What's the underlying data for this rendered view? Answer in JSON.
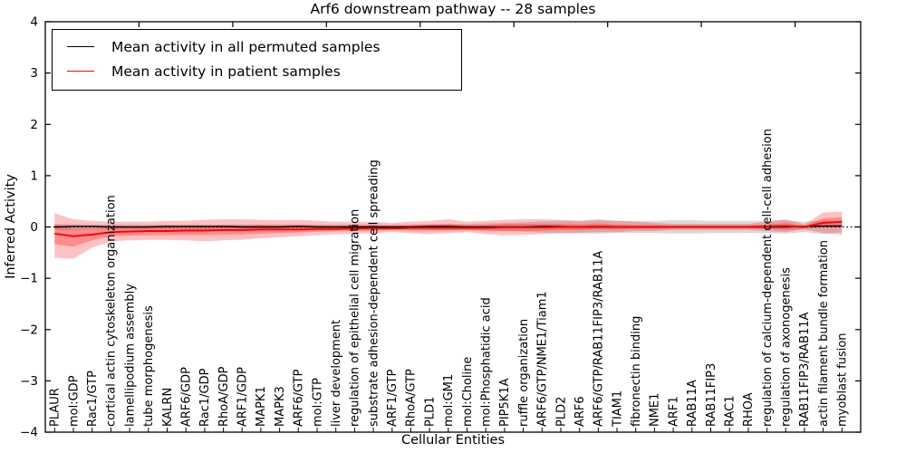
{
  "colors": {
    "patient_line": "#ff0000",
    "permuted_line": "#000000",
    "patient_band": "rgba(255,0,0,0.26)",
    "permuted_band": "rgba(0,0,0,0.15)",
    "axis": "#000000"
  },
  "chart_data": {
    "type": "line",
    "title": "Arf6 downstream pathway -- 28 samples",
    "xlabel": "Cellular Entities",
    "ylabel": "Inferred Activity",
    "ylim": [
      -4,
      4
    ],
    "xlim": [
      0,
      43.5
    ],
    "grid": false,
    "legend_position": "upper left",
    "zero_line": true,
    "y_ticks": [
      4,
      3,
      2,
      1,
      0,
      -1,
      -2,
      -3,
      -4
    ],
    "y_tick_labels": [
      "4",
      "3",
      "2",
      "1",
      "0",
      "−1",
      "−2",
      "−3",
      "−4"
    ],
    "x_major_ticks": [
      5,
      10,
      15,
      20,
      25,
      30,
      35,
      40
    ],
    "categories": [
      "PLAUR",
      "mol:GDP",
      "Rac1/GTP",
      "cortical actin cytoskeleton organization",
      "lamellipodium assembly",
      "tube morphogenesis",
      "KALRN",
      "ARF6/GDP",
      "Rac1/GDP",
      "RhoA/GDP",
      "ARF1/GDP",
      "MAPK1",
      "MAPK3",
      "ARF6/GTP",
      "mol:GTP",
      "liver development",
      "regulation of epithelial cell migration",
      "substrate adhesion-dependent cell spreading",
      "ARF1/GTP",
      "RhoA/GTP",
      "PLD1",
      "mol:GM1",
      "mol:Choline",
      "mol:Phosphatidic acid",
      "PIP5K1A",
      "ruffle organization",
      "ARF6/GTP/NME1/Tiam1",
      "PLD2",
      "ARF6",
      "ARF6/GTP/RAB11FIP3/RAB11A",
      "TIAM1",
      "fibronectin binding",
      "NME1",
      "ARF1",
      "RAB11A",
      "RAB11FIP3",
      "RAC1",
      "RHOA",
      "regulation of calcium-dependent cell-cell adhesion",
      "regulation of axonogenesis",
      "RAB11FIP3/RAB11A",
      "actin filament bundle formation",
      "myoblast fusion"
    ],
    "series": [
      {
        "name": "Mean activity in all permuted samples",
        "color": "#000000",
        "values": [
          0.0,
          0.01,
          0.01,
          0.0,
          0.0,
          0.0,
          0.01,
          0.01,
          0.01,
          0.01,
          0.0,
          0.0,
          0.0,
          0.01,
          0.0,
          0.0,
          0.0,
          0.0,
          0.0,
          0.0,
          0.01,
          0.01,
          0.0,
          0.0,
          0.0,
          0.0,
          0.01,
          0.01,
          0.0,
          0.0,
          0.0,
          0.0,
          0.0,
          0.0,
          0.0,
          0.0,
          0.0,
          0.0,
          0.0,
          0.0,
          0.01,
          0.02,
          0.02
        ]
      },
      {
        "name": "Mean activity in patient samples",
        "color": "#ff0000",
        "values": [
          -0.13,
          -0.18,
          -0.15,
          -0.1,
          -0.09,
          -0.08,
          -0.08,
          -0.07,
          -0.07,
          -0.06,
          -0.06,
          -0.05,
          -0.05,
          -0.05,
          -0.04,
          -0.04,
          -0.03,
          -0.03,
          -0.03,
          -0.02,
          -0.02,
          -0.02,
          -0.02,
          -0.02,
          -0.01,
          -0.01,
          -0.01,
          0.0,
          0.0,
          0.01,
          0.0,
          0.0,
          0.0,
          0.0,
          0.0,
          0.0,
          0.0,
          0.0,
          0.01,
          0.02,
          0.0,
          0.08,
          0.1
        ]
      }
    ],
    "bands": [
      {
        "name": "permuted-samples-range",
        "color": "rgba(0,0,0,0.15)",
        "upper": [
          0.06,
          0.06,
          0.05,
          0.05,
          0.05,
          0.05,
          0.05,
          0.05,
          0.05,
          0.05,
          0.05,
          0.05,
          0.05,
          0.05,
          0.05,
          0.05,
          0.05,
          0.05,
          0.05,
          0.05,
          0.06,
          0.06,
          0.06,
          0.07,
          0.08,
          0.09,
          0.11,
          0.12,
          0.12,
          0.13,
          0.12,
          0.12,
          0.12,
          0.13,
          0.13,
          0.12,
          0.12,
          0.12,
          0.12,
          0.13,
          0.1,
          0.13,
          0.1
        ],
        "lower": [
          -0.06,
          -0.06,
          -0.05,
          -0.05,
          -0.05,
          -0.05,
          -0.05,
          -0.05,
          -0.05,
          -0.05,
          -0.05,
          -0.05,
          -0.05,
          -0.05,
          -0.05,
          -0.05,
          -0.05,
          -0.05,
          -0.05,
          -0.05,
          -0.06,
          -0.06,
          -0.06,
          -0.07,
          -0.08,
          -0.09,
          -0.11,
          -0.12,
          -0.12,
          -0.13,
          -0.12,
          -0.12,
          -0.12,
          -0.13,
          -0.13,
          -0.12,
          -0.12,
          -0.12,
          -0.12,
          -0.13,
          -0.1,
          -0.14,
          -0.1
        ]
      },
      {
        "name": "patient-samples-range-outer",
        "color": "rgba(255,0,0,0.24)",
        "upper": [
          0.27,
          0.15,
          0.12,
          0.1,
          0.1,
          0.1,
          0.12,
          0.12,
          0.14,
          0.15,
          0.15,
          0.14,
          0.13,
          0.14,
          0.12,
          0.1,
          0.1,
          0.1,
          0.08,
          0.1,
          0.12,
          0.15,
          0.1,
          0.12,
          0.14,
          0.15,
          0.15,
          0.14,
          0.12,
          0.15,
          0.12,
          0.1,
          0.08,
          0.06,
          0.06,
          0.06,
          0.06,
          0.06,
          0.1,
          0.15,
          0.05,
          0.28,
          0.3
        ],
        "lower": [
          -0.6,
          -0.62,
          -0.4,
          -0.28,
          -0.26,
          -0.25,
          -0.25,
          -0.26,
          -0.28,
          -0.26,
          -0.25,
          -0.22,
          -0.2,
          -0.18,
          -0.16,
          -0.14,
          -0.13,
          -0.12,
          -0.1,
          -0.12,
          -0.14,
          -0.12,
          -0.1,
          -0.14,
          -0.16,
          -0.15,
          -0.14,
          -0.12,
          -0.12,
          -0.1,
          -0.1,
          -0.08,
          -0.08,
          -0.06,
          -0.06,
          -0.06,
          -0.06,
          -0.06,
          -0.08,
          -0.1,
          -0.05,
          -0.12,
          -0.15
        ]
      },
      {
        "name": "patient-samples-range-inner",
        "color": "rgba(255,0,0,0.28)",
        "upper": [
          0.05,
          -0.03,
          -0.03,
          -0.01,
          0.0,
          0.0,
          0.01,
          0.02,
          0.02,
          0.03,
          0.03,
          0.04,
          0.03,
          0.04,
          0.03,
          0.02,
          0.03,
          0.03,
          0.02,
          0.03,
          0.04,
          0.06,
          0.03,
          0.04,
          0.06,
          0.06,
          0.06,
          0.06,
          0.05,
          0.07,
          0.05,
          0.04,
          0.04,
          0.03,
          0.03,
          0.03,
          0.03,
          0.03,
          0.05,
          0.08,
          0.02,
          0.17,
          0.19
        ],
        "lower": [
          -0.34,
          -0.38,
          -0.26,
          -0.18,
          -0.17,
          -0.16,
          -0.16,
          -0.16,
          -0.16,
          -0.15,
          -0.15,
          -0.13,
          -0.12,
          -0.11,
          -0.09,
          -0.08,
          -0.08,
          -0.07,
          -0.06,
          -0.07,
          -0.07,
          -0.07,
          -0.06,
          -0.07,
          -0.08,
          -0.08,
          -0.07,
          -0.06,
          -0.06,
          -0.05,
          -0.05,
          -0.04,
          -0.04,
          -0.03,
          -0.03,
          -0.03,
          -0.03,
          -0.03,
          -0.04,
          -0.06,
          -0.03,
          -0.01,
          -0.01
        ]
      }
    ]
  }
}
